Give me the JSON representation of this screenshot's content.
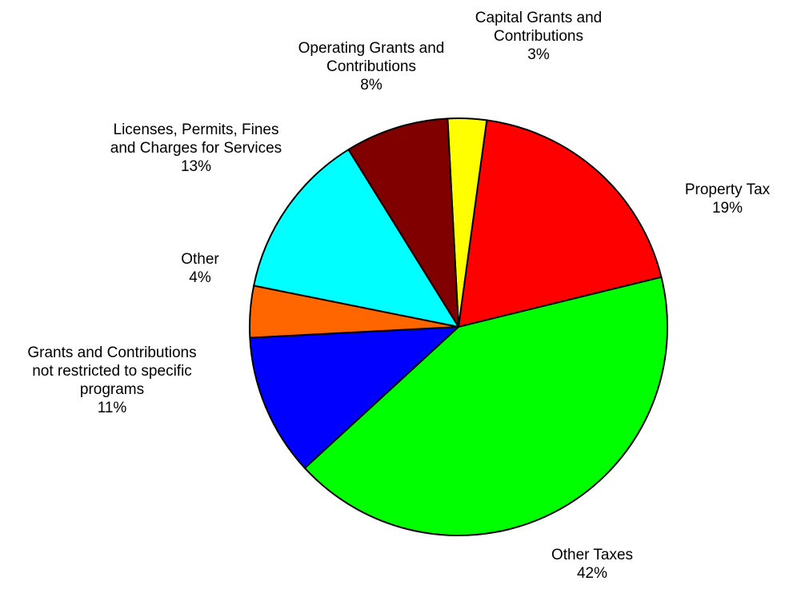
{
  "chart_data": {
    "type": "pie",
    "title": "",
    "start": "Capital Grants and Contributions at 12 o'clock, clockwise",
    "slices": [
      {
        "name": "Capital Grants and Contributions",
        "label_lines": [
          "Capital Grants and",
          "Contributions"
        ],
        "pct_label": "3%",
        "value": 3,
        "color": "#FFFF00"
      },
      {
        "name": "Property Tax",
        "label_lines": [
          "Property Tax"
        ],
        "pct_label": "19%",
        "value": 19,
        "color": "#FF0000"
      },
      {
        "name": "Other Taxes",
        "label_lines": [
          "Other Taxes"
        ],
        "pct_label": "42%",
        "value": 42,
        "color": "#00FF00"
      },
      {
        "name": "Grants and Contributions not restricted to specific programs",
        "label_lines": [
          "Grants and Contributions",
          "not restricted to specific",
          "programs"
        ],
        "pct_label": "11%",
        "value": 11,
        "color": "#0000FF"
      },
      {
        "name": "Other",
        "label_lines": [
          "Other"
        ],
        "pct_label": "4%",
        "value": 4,
        "color": "#FF6600"
      },
      {
        "name": "Licenses, Permits, Fines and Charges for Services",
        "label_lines": [
          "Licenses, Permits, Fines",
          "and Charges for Services"
        ],
        "pct_label": "13%",
        "value": 13,
        "color": "#00FFFF"
      },
      {
        "name": "Operating Grants and Contributions",
        "label_lines": [
          "Operating Grants and",
          "Contributions"
        ],
        "pct_label": "8%",
        "value": 8,
        "color": "#800000"
      }
    ],
    "legend": "none"
  }
}
